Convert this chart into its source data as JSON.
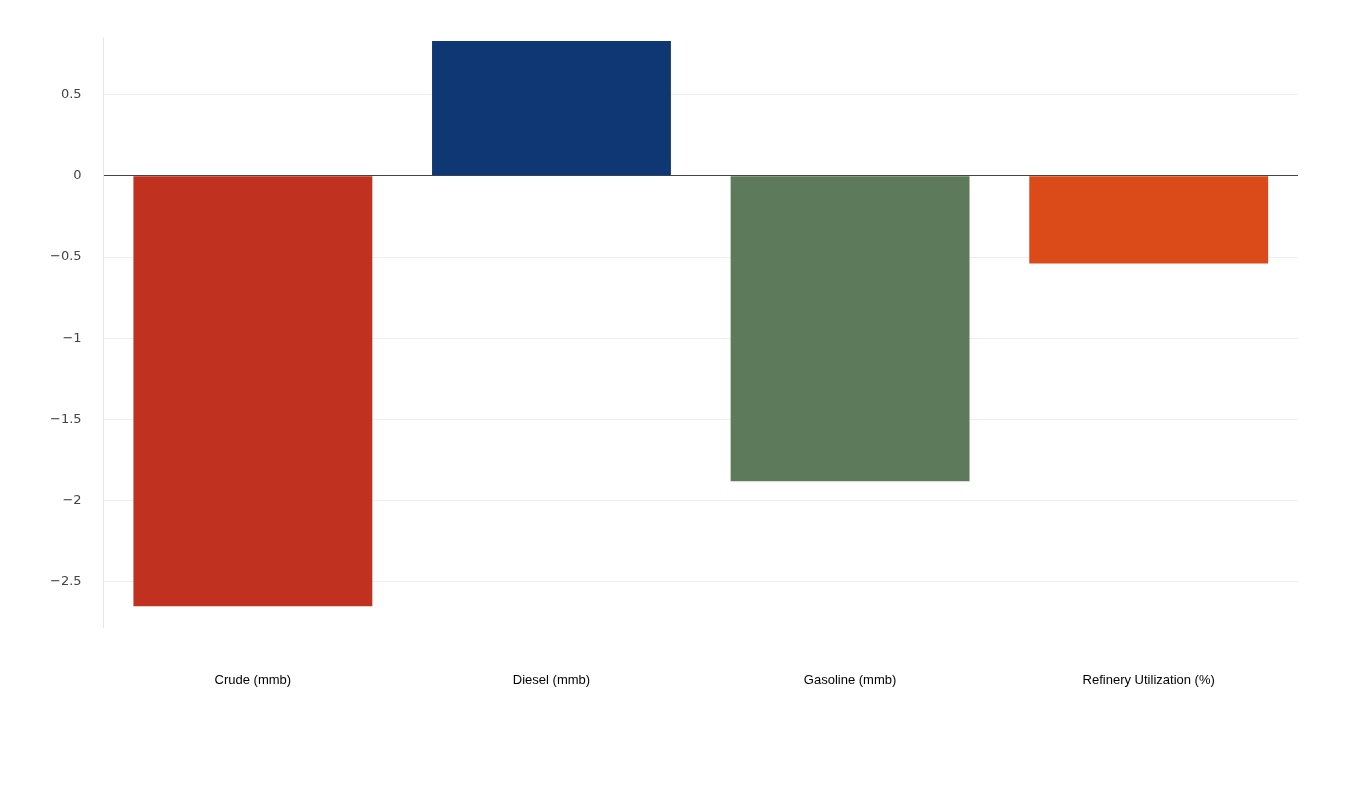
{
  "chart_data": {
    "type": "bar",
    "categories": [
      "Crude (mmb)",
      "Diesel (mmb)",
      "Gasoline (mmb)",
      "Refinery Utilization (%)"
    ],
    "values": [
      -2.65,
      0.83,
      -1.88,
      -0.54
    ],
    "colors": [
      "#c0311f",
      "#0e3773",
      "#5d7a5a",
      "#da4b19"
    ],
    "ylim": [
      -2.78,
      0.85
    ],
    "yticks": [
      -2.5,
      -2,
      -1.5,
      -1,
      -0.5,
      0,
      0.5
    ],
    "grid": "y",
    "legend": false
  }
}
